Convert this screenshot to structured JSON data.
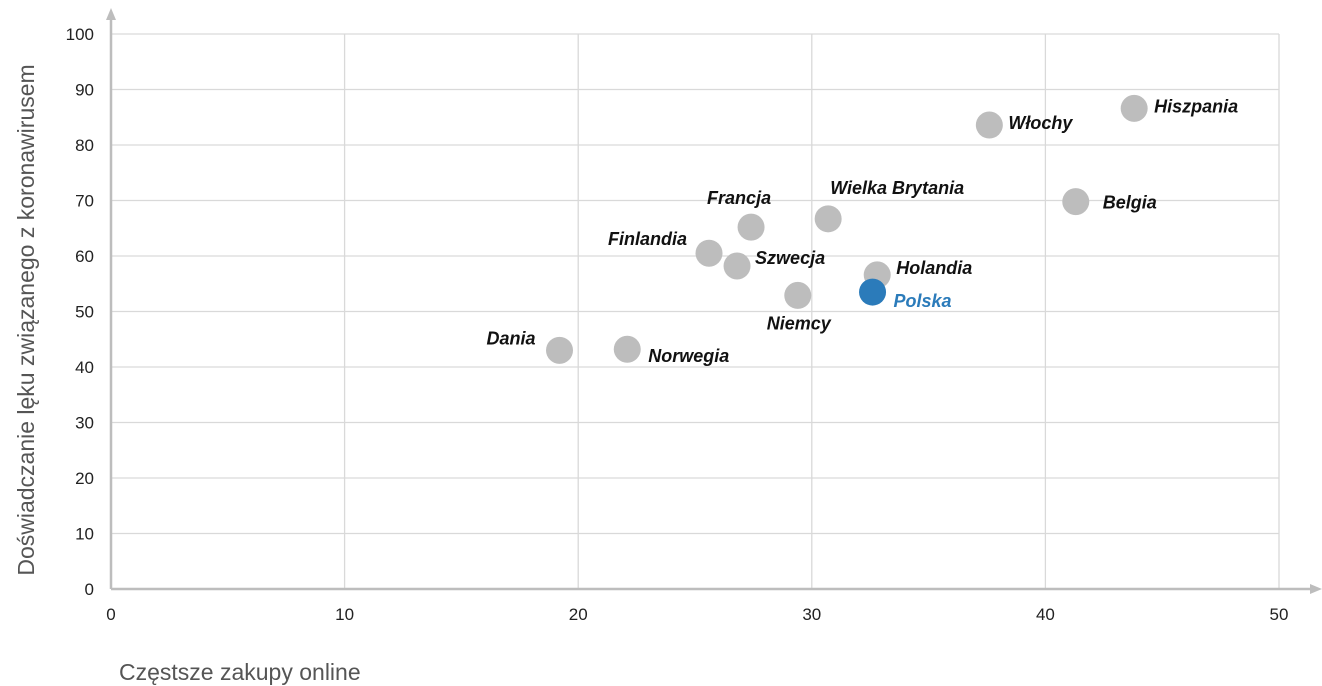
{
  "chart_data": {
    "type": "scatter",
    "title": "",
    "xlabel": "Częstsze zakupy online",
    "ylabel": "Doświadczanie lęku związanego z koronawirusem",
    "xlim": [
      0,
      50
    ],
    "ylim": [
      0,
      100
    ],
    "x_ticks": [
      "0",
      "10",
      "20",
      "30",
      "40",
      "50"
    ],
    "y_ticks": [
      "0",
      "10",
      "20",
      "30",
      "40",
      "50",
      "60",
      "70",
      "80",
      "90",
      "100"
    ],
    "grid": true,
    "colors": {
      "default": "#bdbdbd",
      "highlight": "#2b7bba",
      "label": "#111111",
      "grid": "#d9d9d9",
      "axis": "#bdbdbd"
    },
    "points": [
      {
        "name": "Dania",
        "x": 19.2,
        "y": 43,
        "highlight": false
      },
      {
        "name": "Norwegia",
        "x": 22.1,
        "y": 43.2,
        "highlight": false
      },
      {
        "name": "Finlandia",
        "x": 25.6,
        "y": 60.5,
        "highlight": false
      },
      {
        "name": "Szwecja",
        "x": 26.8,
        "y": 58.2,
        "highlight": false
      },
      {
        "name": "Francja",
        "x": 27.4,
        "y": 65.2,
        "highlight": false
      },
      {
        "name": "Niemcy",
        "x": 29.4,
        "y": 52.9,
        "highlight": false
      },
      {
        "name": "Wielka Brytania",
        "x": 30.7,
        "y": 66.7,
        "highlight": false
      },
      {
        "name": "Holandia",
        "x": 32.8,
        "y": 56.6,
        "highlight": false
      },
      {
        "name": "Polska",
        "x": 32.6,
        "y": 53.5,
        "highlight": true
      },
      {
        "name": "Włochy",
        "x": 37.6,
        "y": 83.6,
        "highlight": false
      },
      {
        "name": "Belgia",
        "x": 41.3,
        "y": 69.8,
        "highlight": false
      },
      {
        "name": "Hiszpania",
        "x": 43.8,
        "y": 86.6,
        "highlight": false
      }
    ]
  }
}
